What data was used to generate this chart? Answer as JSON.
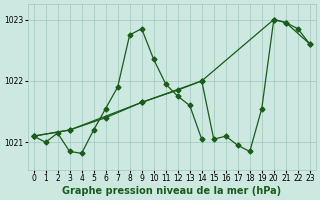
{
  "title": "Graphe pression niveau de la mer (hPa)",
  "bg_color": "#cce8e0",
  "line_color": "#1a5c1a",
  "grid_color": "#a0c8b8",
  "ylim": [
    1020.55,
    1023.25
  ],
  "yticks": [
    1021,
    1022,
    1023
  ],
  "xlim": [
    -0.5,
    23.5
  ],
  "xticks": [
    0,
    1,
    2,
    3,
    4,
    5,
    6,
    7,
    8,
    9,
    10,
    11,
    12,
    13,
    14,
    15,
    16,
    17,
    18,
    19,
    20,
    21,
    22,
    23
  ],
  "series1_hours": [
    0,
    1,
    2,
    3,
    4,
    5,
    6,
    7,
    8,
    9,
    10,
    11,
    12,
    13,
    14
  ],
  "series1_pressure": [
    1021.1,
    1021.0,
    1021.15,
    1020.85,
    1020.82,
    1021.2,
    1021.55,
    1021.9,
    1022.75,
    1022.85,
    1022.35,
    1021.95,
    1021.75,
    1021.6,
    1021.05
  ],
  "series2_hours": [
    0,
    3,
    6,
    9,
    12,
    14,
    15,
    16,
    17,
    18,
    19,
    20,
    21,
    22,
    23
  ],
  "series2_pressure": [
    1021.1,
    1021.2,
    1021.4,
    1021.65,
    1021.85,
    1022.0,
    1021.05,
    1021.1,
    1020.95,
    1020.85,
    1021.55,
    1023.0,
    1022.95,
    1022.85,
    1022.6
  ],
  "series3_hours": [
    0,
    3,
    9,
    14,
    20,
    21,
    23
  ],
  "series3_pressure": [
    1021.1,
    1021.2,
    1021.65,
    1022.0,
    1023.0,
    1022.95,
    1022.6
  ],
  "marker": "D",
  "markersize": 2.5,
  "linewidth": 0.9,
  "title_fontsize": 7,
  "tick_fontsize": 5.5
}
